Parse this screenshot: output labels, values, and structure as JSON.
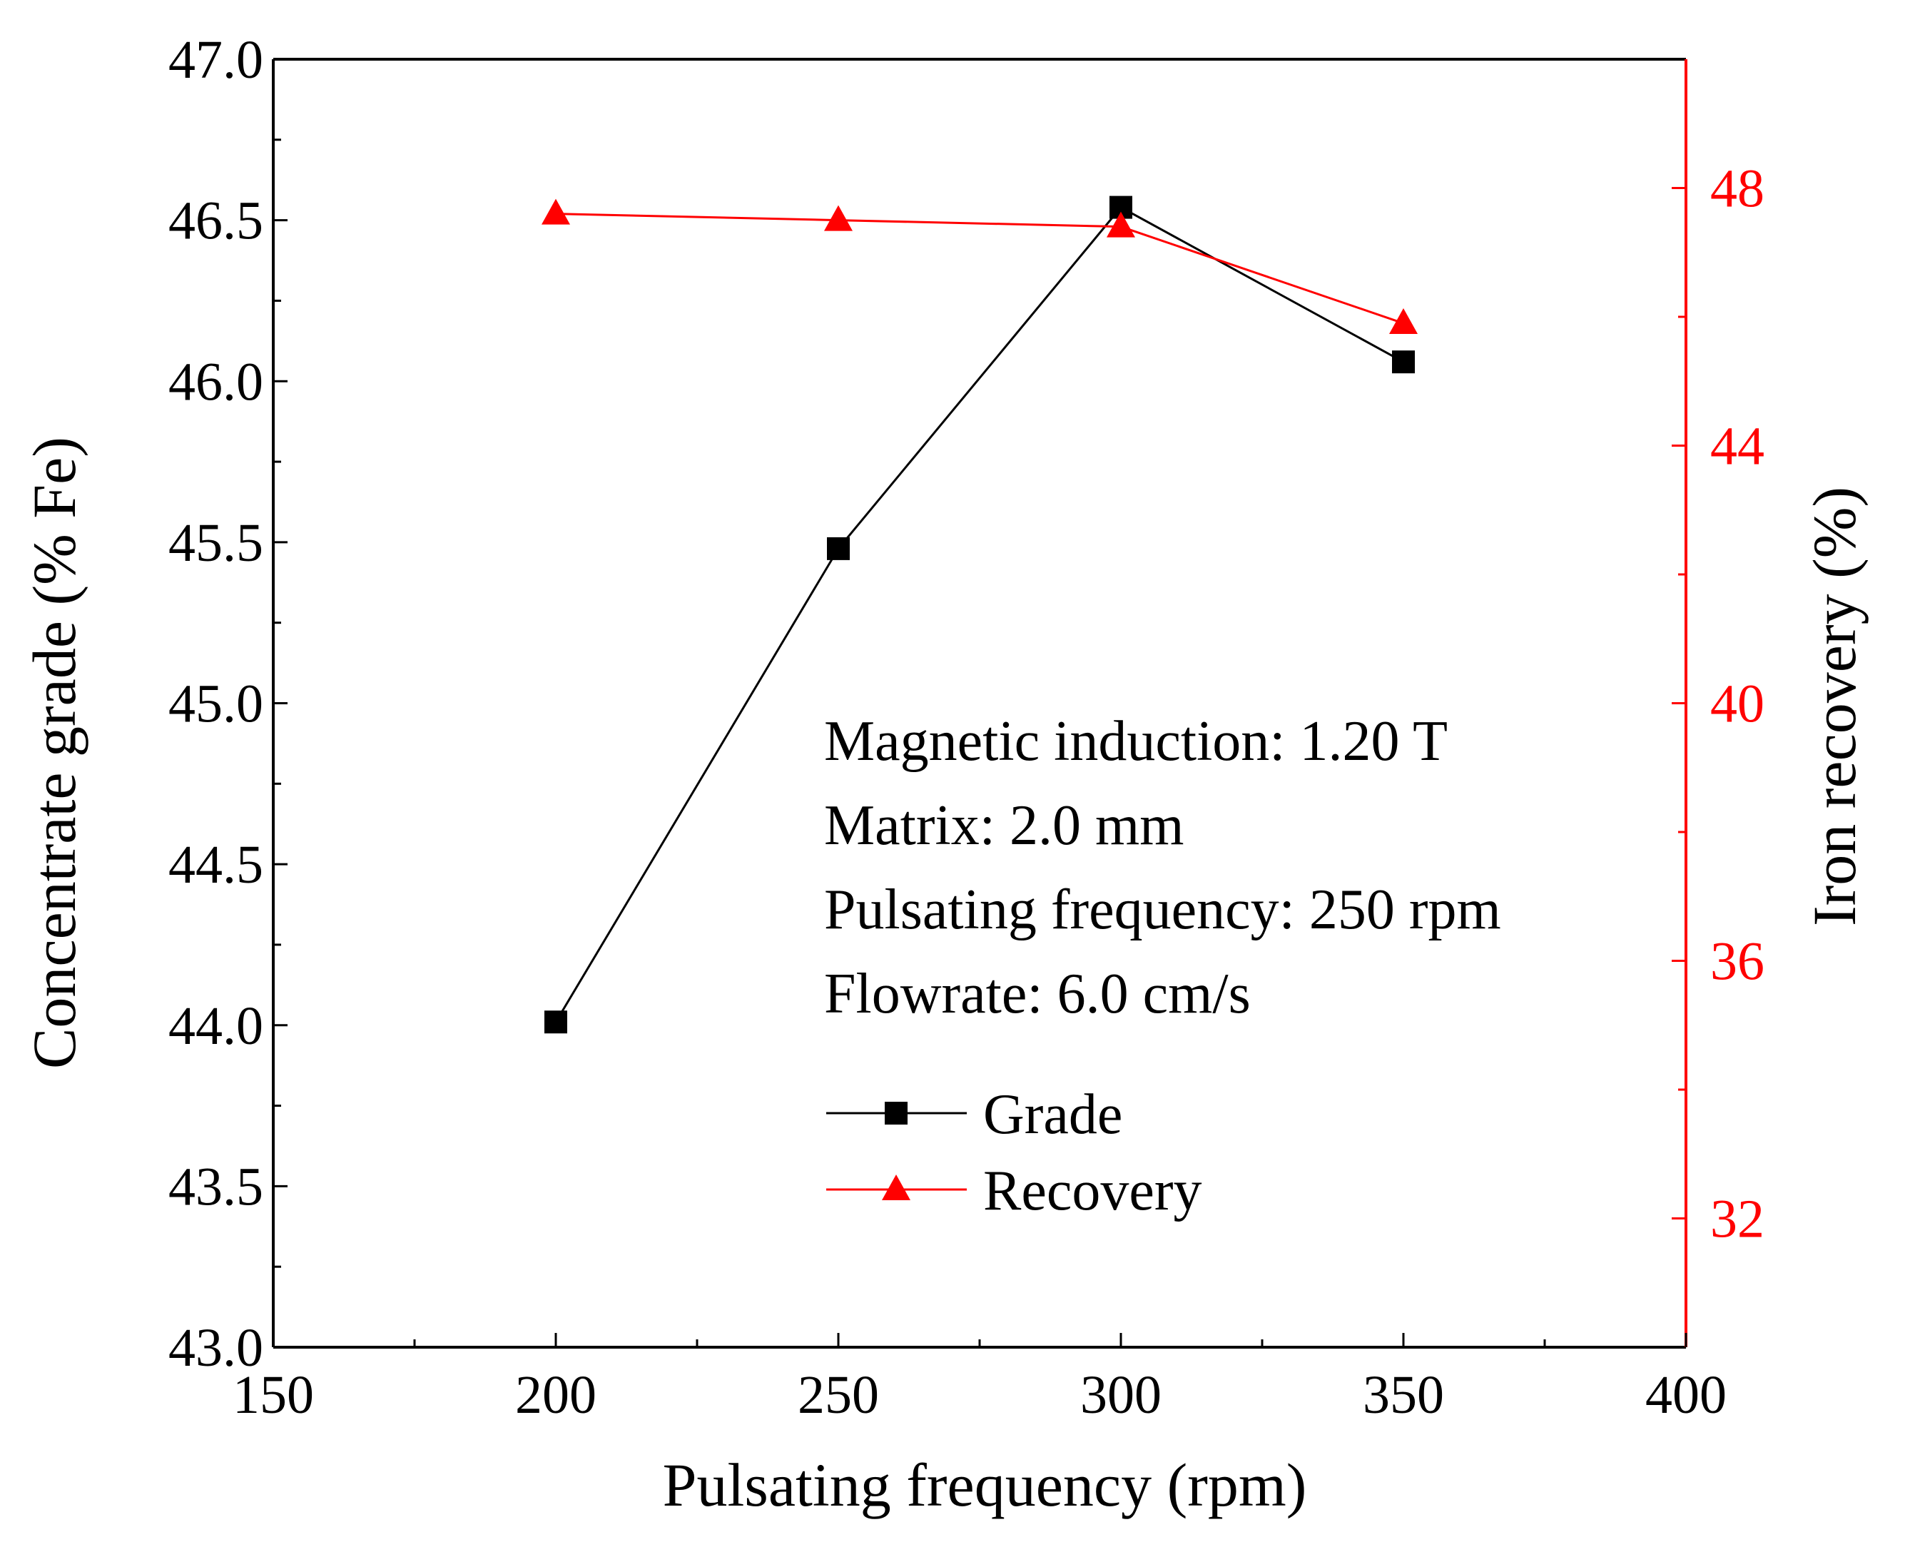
{
  "chart_data": {
    "type": "line",
    "title": "",
    "xlabel": "Pulsating frequency (rpm)",
    "ylabel": "Concentrate grade (% Fe)",
    "y2label": "Iron recovery (%)",
    "xlim": [
      150,
      400
    ],
    "ylim": [
      43.0,
      47.0
    ],
    "y2lim": [
      30,
      50
    ],
    "x_ticks": [
      150,
      200,
      250,
      300,
      350,
      400
    ],
    "x_tick_labels": [
      "150",
      "200",
      "250",
      "300",
      "350",
      "400"
    ],
    "y_ticks": [
      43.0,
      43.5,
      44.0,
      44.5,
      45.0,
      45.5,
      46.0,
      46.5,
      47.0
    ],
    "y_tick_labels": [
      "43.0",
      "43.5",
      "44.0",
      "44.5",
      "45.0",
      "45.5",
      "46.0",
      "46.5",
      "47.0"
    ],
    "y2_ticks": [
      32,
      36,
      40,
      44,
      48
    ],
    "y2_tick_labels": [
      "32",
      "36",
      "40",
      "44",
      "48"
    ],
    "grid": false,
    "legend_position": "lower-center",
    "series": [
      {
        "name": "Grade",
        "axis": "left",
        "marker": "square",
        "color": "#000000",
        "x": [
          200,
          250,
          300,
          350
        ],
        "values": [
          44.01,
          45.48,
          46.54,
          46.06
        ]
      },
      {
        "name": "Recovery",
        "axis": "right",
        "marker": "triangle",
        "color": "#ff0000",
        "x": [
          200,
          250,
          300,
          350
        ],
        "values": [
          47.6,
          47.5,
          47.4,
          45.9
        ]
      }
    ],
    "annotations": [
      "Magnetic induction: 1.20 T",
      "Matrix: 2.0 mm",
      "Pulsating frequency: 250 rpm",
      "Flowrate: 6.0 cm/s"
    ],
    "colors": {
      "left_axis": "#000000",
      "right_axis": "#ff0000"
    }
  }
}
